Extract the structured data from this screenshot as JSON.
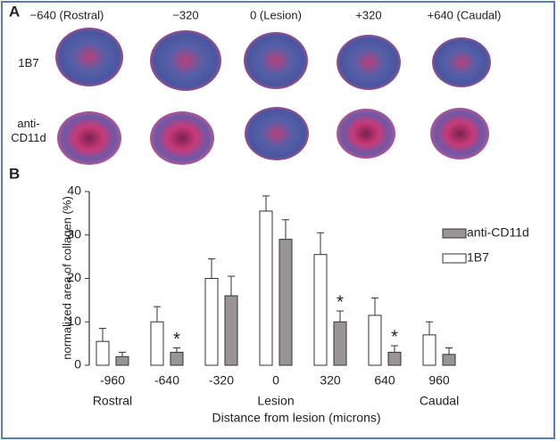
{
  "panel_a": {
    "label": "A",
    "columns": [
      "−640 (Rostral)",
      "−320",
      "0 (Lesion)",
      "+320",
      "+640 (Caudal)"
    ],
    "rows": [
      "1B7",
      "anti-\nCD11d"
    ]
  },
  "chart_data": {
    "type": "bar",
    "panel_label": "B",
    "ylabel": "normalized area of collagen (%)",
    "xlabel": "Distance from lesion (microns)",
    "categories": [
      "-960",
      "-640",
      "-320",
      "0",
      "320",
      "640",
      "960"
    ],
    "x_sublabels": [
      "Rostral",
      null,
      null,
      "Lesion",
      null,
      null,
      "Caudal"
    ],
    "series": [
      {
        "name": "1B7",
        "color": "#ffffff",
        "values": [
          5.5,
          10,
          20,
          35.5,
          25.5,
          11.5,
          7
        ],
        "errors": [
          3,
          3.5,
          4.5,
          3.5,
          5,
          4,
          3
        ]
      },
      {
        "name": "anti-CD11d",
        "color": "#9a9398",
        "values": [
          2,
          3,
          16,
          29,
          10,
          3,
          2.5
        ],
        "errors": [
          1,
          1,
          4.5,
          4.5,
          2.5,
          1.5,
          1.5
        ]
      }
    ],
    "legend_order": [
      1,
      0
    ],
    "annotations": [
      {
        "text": "*",
        "category": "-640"
      },
      {
        "text": "*",
        "category": "320"
      },
      {
        "text": "*",
        "category": "640"
      }
    ],
    "ylim": [
      0,
      40
    ],
    "yticks": [
      0,
      10,
      20,
      30,
      40
    ],
    "legend": "right"
  }
}
